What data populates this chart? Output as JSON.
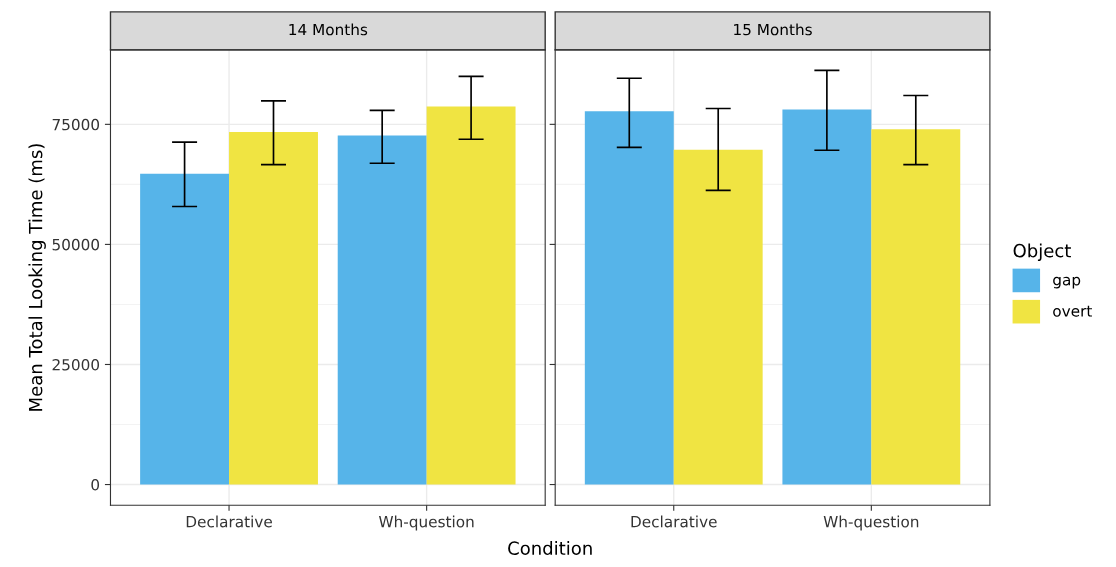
{
  "chart_data": [
    {
      "type": "bar",
      "title": "14 Months",
      "ylabel": "Mean Total Looking Time (ms)",
      "xlabel": "Condition",
      "categories": [
        "Declarative",
        "Wh-question"
      ],
      "ylim": [
        -4300,
        90500
      ],
      "yticks": [
        0,
        25000,
        50000,
        75000
      ],
      "grid": true,
      "legend": "right",
      "legend_title": "Object",
      "series": [
        {
          "name": "gap",
          "color": "#56b4e9",
          "values": [
            64700,
            72700
          ],
          "errors": [
            [
              57900,
              71300
            ],
            [
              66900,
              77900
            ]
          ]
        },
        {
          "name": "overt",
          "color": "#f0e442",
          "values": [
            73400,
            78700
          ],
          "errors": [
            [
              66600,
              79900
            ],
            [
              71900,
              85000
            ]
          ]
        }
      ]
    },
    {
      "type": "bar",
      "title": "15 Months",
      "categories": [
        "Declarative",
        "Wh-question"
      ],
      "ylim": [
        -4300,
        90500
      ],
      "yticks": [
        0,
        25000,
        50000,
        75000
      ],
      "grid": true,
      "tick_labels": "x",
      "series": [
        {
          "color": "#56b4e9",
          "values": [
            77700,
            78100
          ],
          "errors": [
            [
              70200,
              84600
            ],
            [
              69600,
              86250
            ]
          ]
        },
        {
          "color": "#f0e442",
          "values": [
            69700,
            74000
          ],
          "errors": [
            [
              61250,
              78300
            ],
            [
              66600,
              81000
            ]
          ]
        }
      ]
    }
  ]
}
